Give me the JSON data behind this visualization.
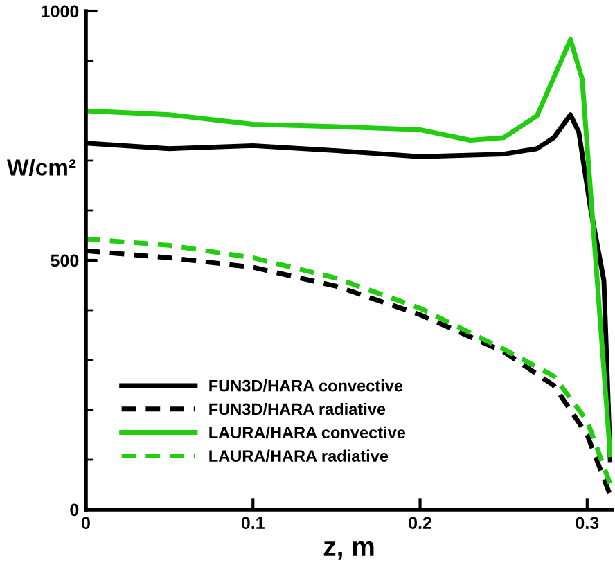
{
  "chart_data": {
    "type": "line",
    "xlabel": "z, m",
    "ylabel": "W/cm²",
    "xlim": [
      0,
      0.315
    ],
    "ylim": [
      0,
      1000
    ],
    "xticks": [
      0,
      0.1,
      0.2,
      0.3
    ],
    "yticks": [
      0,
      500,
      1000
    ],
    "legend": "bottom left",
    "grid": false,
    "series": [
      {
        "name": "FUN3D/HARA convective",
        "color": "#000000",
        "line_style": "solid",
        "x": [
          0,
          0.05,
          0.1,
          0.15,
          0.2,
          0.25,
          0.27,
          0.28,
          0.29,
          0.295,
          0.302,
          0.31,
          0.3138
        ],
        "values": [
          735,
          724,
          730,
          720,
          708,
          713,
          724,
          746,
          792,
          757,
          604,
          460,
          100
        ]
      },
      {
        "name": "FUN3D/HARA radiative",
        "color": "#000000",
        "line_style": "dashed",
        "x": [
          0,
          0.05,
          0.1,
          0.15,
          0.2,
          0.25,
          0.28,
          0.3,
          0.314
        ],
        "values": [
          519,
          505,
          486,
          448,
          391,
          317,
          249,
          150,
          27
        ]
      },
      {
        "name": "LAURA/HARA convective",
        "color": "#22cc11",
        "line_style": "solid",
        "x": [
          0,
          0.05,
          0.1,
          0.15,
          0.2,
          0.23,
          0.25,
          0.27,
          0.29,
          0.297,
          0.3138
        ],
        "values": [
          800,
          792,
          773,
          768,
          762,
          741,
          746,
          790,
          943,
          864,
          110
        ]
      },
      {
        "name": "LAURA/HARA radiative",
        "color": "#22cc11",
        "line_style": "dashed",
        "x": [
          0,
          0.05,
          0.1,
          0.15,
          0.2,
          0.25,
          0.28,
          0.3,
          0.314
        ],
        "values": [
          543,
          530,
          505,
          464,
          404,
          322,
          268,
          178,
          49
        ]
      }
    ]
  }
}
